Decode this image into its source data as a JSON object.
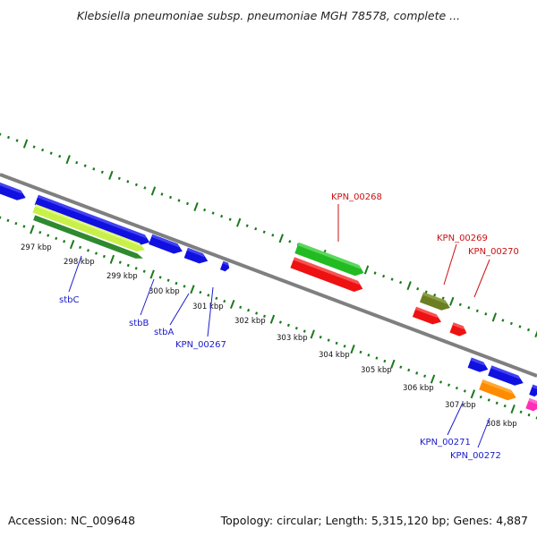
{
  "title": "Klebsiella pneumoniae subsp. pneumoniae MGH 78578, complete ...",
  "footer": {
    "accession": "Accession: NC_009648",
    "summary": "Topology: circular; Length: 5,315,120 bp; Genes: 4,887"
  },
  "colors": {
    "backbone": "#7f7f7f",
    "ticks": "#1a7a1a",
    "forward_label": "#1a1acc",
    "reverse_label": "#cc1111"
  },
  "scale": {
    "ticks": [
      "297 kbp",
      "298 kbp",
      "299 kbp",
      "300 kbp",
      "301 kbp",
      "302 kbp",
      "303 kbp",
      "304 kbp",
      "305 kbp",
      "306 kbp",
      "307 kbp",
      "308 kbp"
    ]
  },
  "genes": {
    "forward_strand_labels": [
      "stbC",
      "stbB",
      "stbA",
      "KPN_00267",
      "KPN_00271",
      "KPN_00272"
    ],
    "reverse_strand_labels": [
      "KPN_00268",
      "KPN_00269",
      "KPN_00270"
    ]
  }
}
